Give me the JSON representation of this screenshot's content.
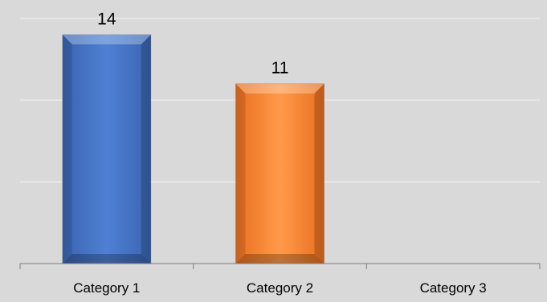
{
  "chart_data": {
    "type": "bar",
    "title": "",
    "xlabel": "",
    "ylabel": "",
    "categories": [
      "Category 1",
      "Category 2",
      "Category 3"
    ],
    "values": [
      14,
      11,
      null
    ],
    "data_labels": [
      "14",
      "11",
      ""
    ],
    "bar_colors": [
      "#4472c4",
      "#ed7d31",
      "#a5a5a5"
    ],
    "ylim": [
      0,
      15
    ],
    "grid": true,
    "legend": "none",
    "background_color": "#d9d9d9",
    "gridline_color": "#f2f2f2"
  }
}
